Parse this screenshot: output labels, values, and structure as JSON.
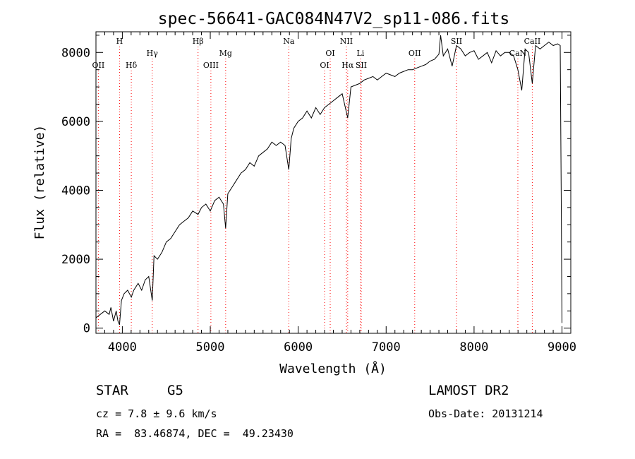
{
  "chart_data": {
    "type": "line",
    "title": "spec-56641-GAC084N47V2_sp11-086.fits",
    "xlabel": "Wavelength (Å)",
    "ylabel": "Flux (relative)",
    "xlim": [
      3700,
      9100
    ],
    "ylim": [
      -150,
      8600
    ],
    "x_ticks": [
      4000,
      5000,
      6000,
      7000,
      8000,
      9000
    ],
    "y_ticks": [
      0,
      2000,
      4000,
      6000,
      8000
    ],
    "x_tick_labels": [
      "4000",
      "5000",
      "6000",
      "7000",
      "8000",
      "9000"
    ],
    "y_tick_labels": [
      "0",
      "2000",
      "4000",
      "6000",
      "8000"
    ],
    "grid": false,
    "series": [
      {
        "name": "flux",
        "x": [
          3700,
          3750,
          3800,
          3850,
          3870,
          3900,
          3930,
          3950,
          3968,
          3990,
          4020,
          4060,
          4102,
          4130,
          4180,
          4220,
          4260,
          4300,
          4340,
          4360,
          4400,
          4450,
          4500,
          4550,
          4600,
          4650,
          4700,
          4750,
          4800,
          4861,
          4900,
          4950,
          5000,
          5050,
          5100,
          5150,
          5175,
          5200,
          5250,
          5300,
          5350,
          5400,
          5450,
          5500,
          5550,
          5600,
          5650,
          5700,
          5750,
          5800,
          5850,
          5893,
          5920,
          5950,
          6000,
          6050,
          6100,
          6150,
          6200,
          6250,
          6300,
          6350,
          6400,
          6450,
          6500,
          6563,
          6600,
          6650,
          6700,
          6750,
          6800,
          6850,
          6900,
          6950,
          7000,
          7050,
          7100,
          7150,
          7200,
          7250,
          7300,
          7350,
          7400,
          7450,
          7500,
          7550,
          7600,
          7620,
          7650,
          7700,
          7750,
          7800,
          7850,
          7900,
          7950,
          8000,
          8050,
          8100,
          8150,
          8200,
          8250,
          8300,
          8350,
          8400,
          8450,
          8498,
          8542,
          8580,
          8620,
          8662,
          8700,
          8750,
          8800,
          8850,
          8900,
          8950,
          8980,
          8990,
          9000
        ],
        "y": [
          300,
          400,
          500,
          400,
          600,
          200,
          500,
          200,
          100,
          800,
          1000,
          1100,
          900,
          1100,
          1300,
          1100,
          1400,
          1500,
          800,
          2100,
          2000,
          2200,
          2500,
          2600,
          2800,
          3000,
          3100,
          3200,
          3400,
          3300,
          3500,
          3600,
          3400,
          3700,
          3800,
          3600,
          2900,
          3900,
          4100,
          4300,
          4500,
          4600,
          4800,
          4700,
          5000,
          5100,
          5200,
          5400,
          5300,
          5400,
          5300,
          4600,
          5500,
          5800,
          6000,
          6100,
          6300,
          6100,
          6400,
          6200,
          6400,
          6500,
          6600,
          6700,
          6800,
          6100,
          7000,
          7050,
          7100,
          7200,
          7250,
          7300,
          7200,
          7300,
          7400,
          7350,
          7300,
          7400,
          7450,
          7500,
          7500,
          7550,
          7600,
          7650,
          7750,
          7800,
          7950,
          8500,
          7900,
          8100,
          7600,
          8200,
          8100,
          7900,
          8000,
          8050,
          7800,
          7900,
          8000,
          7700,
          8050,
          7900,
          8000,
          8000,
          7900,
          7500,
          6900,
          8100,
          8000,
          7100,
          8200,
          8100,
          8200,
          8300,
          8200,
          8250,
          8200,
          4200,
          150
        ]
      }
    ],
    "annotations": [
      {
        "label": "OII",
        "x": 3727,
        "row": 3
      },
      {
        "label": "H",
        "x": 3968,
        "row": 1
      },
      {
        "label": "Hδ",
        "x": 4102,
        "row": 3
      },
      {
        "label": "Hγ",
        "x": 4340,
        "row": 2
      },
      {
        "label": "Hβ",
        "x": 4861,
        "row": 1
      },
      {
        "label": "OIII",
        "x": 5007,
        "row": 3
      },
      {
        "label": "Mg",
        "x": 5175,
        "row": 2
      },
      {
        "label": "Na",
        "x": 5893,
        "row": 1
      },
      {
        "label": "OI",
        "x": 6300,
        "row": 3
      },
      {
        "label": "OI",
        "x": 6364,
        "row": 2
      },
      {
        "label": "NII",
        "x": 6548,
        "row": 1
      },
      {
        "label": "Hα",
        "x": 6563,
        "row": 3
      },
      {
        "label": "Li",
        "x": 6708,
        "row": 2
      },
      {
        "label": "SII",
        "x": 6717,
        "row": 3
      },
      {
        "label": "OII",
        "x": 7325,
        "row": 2
      },
      {
        "label": "SII",
        "x": 7800,
        "row": 1
      },
      {
        "label": "CaN",
        "x": 8498,
        "row": 2
      },
      {
        "label": "CaII",
        "x": 8662,
        "row": 1
      }
    ],
    "annotation_color": "#ff0000"
  },
  "info": {
    "object_class": "STAR",
    "subclass": "G5",
    "survey": "LAMOST DR2",
    "cz": "cz = 7.8 ± 9.6 km/s",
    "obs_date": "Obs-Date: 20131214",
    "coords": "RA =  83.46874, DEC =  49.23430"
  }
}
